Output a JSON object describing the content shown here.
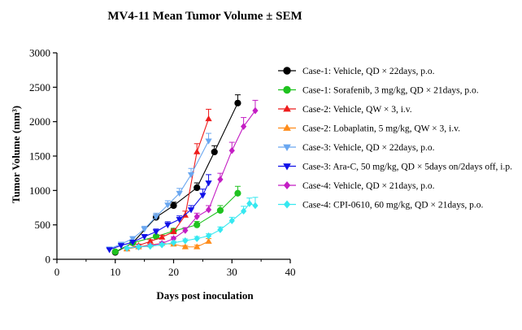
{
  "chart_data": {
    "type": "line",
    "title": "MV4-11 Mean Tumor Volume ± SEM",
    "xlabel": "Days post inoculation",
    "ylabel": "Tumor Volume (mm³)",
    "xlim": [
      0,
      40
    ],
    "ylim": [
      0,
      3000
    ],
    "xticks": [
      "0",
      "10",
      "20",
      "30",
      "40"
    ],
    "yticks": [
      "0",
      "500",
      "1000",
      "1500",
      "2000",
      "2500",
      "3000"
    ],
    "grid": false,
    "legend_position": "right",
    "series": [
      {
        "name": "Case-1: Vehicle, QD × 22days, p.o.",
        "color": "#000000",
        "marker": "circle",
        "x": [
          10,
          13,
          17,
          20,
          24,
          27,
          31
        ],
        "y": [
          100,
          240,
          610,
          780,
          1040,
          1560,
          2270
        ],
        "err": [
          20,
          30,
          40,
          50,
          70,
          90,
          120
        ]
      },
      {
        "name": "Case-1: Sorafenib, 3 mg/kg, QD × 21days, p.o.",
        "color": "#1fc21f",
        "marker": "circle",
        "x": [
          10,
          13,
          17,
          20,
          24,
          28,
          31
        ],
        "y": [
          110,
          240,
          330,
          410,
          500,
          710,
          960
        ],
        "err": [
          15,
          25,
          30,
          40,
          50,
          70,
          100
        ]
      },
      {
        "name": "Case-2: Vehicle, QW × 3, i.v.",
        "color": "#ee1c1c",
        "marker": "triangle-up",
        "x": [
          12,
          14,
          16,
          18,
          20,
          22,
          24,
          26
        ],
        "y": [
          150,
          200,
          260,
          320,
          400,
          640,
          1560,
          2040
        ],
        "err": [
          15,
          20,
          25,
          30,
          40,
          60,
          120,
          140
        ]
      },
      {
        "name": "Case-2: Lobaplatin, 5 mg/kg, QW × 3, i.v.",
        "color": "#ff8c1a",
        "marker": "triangle-up",
        "x": [
          12,
          14,
          16,
          18,
          20,
          22,
          24,
          26
        ],
        "y": [
          150,
          180,
          210,
          230,
          220,
          180,
          180,
          260
        ],
        "err": [
          15,
          15,
          20,
          20,
          20,
          20,
          25,
          40
        ]
      },
      {
        "name": "Case-3: Vehicle, QD × 22days, p.o.",
        "color": "#6aa7f0",
        "marker": "triangle-down",
        "x": [
          9,
          11,
          13,
          15,
          17,
          19,
          21,
          23,
          26
        ],
        "y": [
          150,
          220,
          300,
          440,
          620,
          790,
          960,
          1230,
          1720
        ],
        "err": [
          15,
          20,
          30,
          40,
          50,
          60,
          70,
          90,
          110
        ]
      },
      {
        "name": "Case-3: Ara-C, 50 mg/kg, QD × 5days on/2days off, i.p.",
        "color": "#1010e8",
        "marker": "triangle-down",
        "x": [
          9,
          11,
          13,
          15,
          17,
          19,
          21,
          23,
          25,
          26
        ],
        "y": [
          140,
          200,
          250,
          330,
          400,
          500,
          580,
          720,
          930,
          1110
        ],
        "err": [
          15,
          20,
          25,
          30,
          40,
          45,
          50,
          60,
          90,
          120
        ]
      },
      {
        "name": "Case-4: Vehicle, QD × 21days, p.o.",
        "color": "#c41ec4",
        "marker": "diamond",
        "x": [
          12,
          14,
          16,
          18,
          20,
          22,
          24,
          26,
          28,
          30,
          32,
          34
        ],
        "y": [
          160,
          180,
          200,
          230,
          300,
          420,
          620,
          720,
          1160,
          1580,
          1930,
          2160
        ],
        "err": [
          15,
          15,
          20,
          20,
          25,
          40,
          50,
          60,
          90,
          120,
          130,
          150
        ]
      },
      {
        "name": "Case-4: CPI-0610, 60 mg/kg, QD × 21days, p.o.",
        "color": "#36e8f0",
        "marker": "diamond",
        "x": [
          12,
          14,
          16,
          18,
          20,
          22,
          24,
          26,
          28,
          30,
          32,
          33,
          34
        ],
        "y": [
          160,
          180,
          190,
          210,
          240,
          270,
          300,
          340,
          430,
          560,
          700,
          810,
          780
        ],
        "err": [
          15,
          15,
          15,
          20,
          20,
          25,
          30,
          30,
          40,
          50,
          70,
          80,
          120
        ]
      }
    ]
  }
}
